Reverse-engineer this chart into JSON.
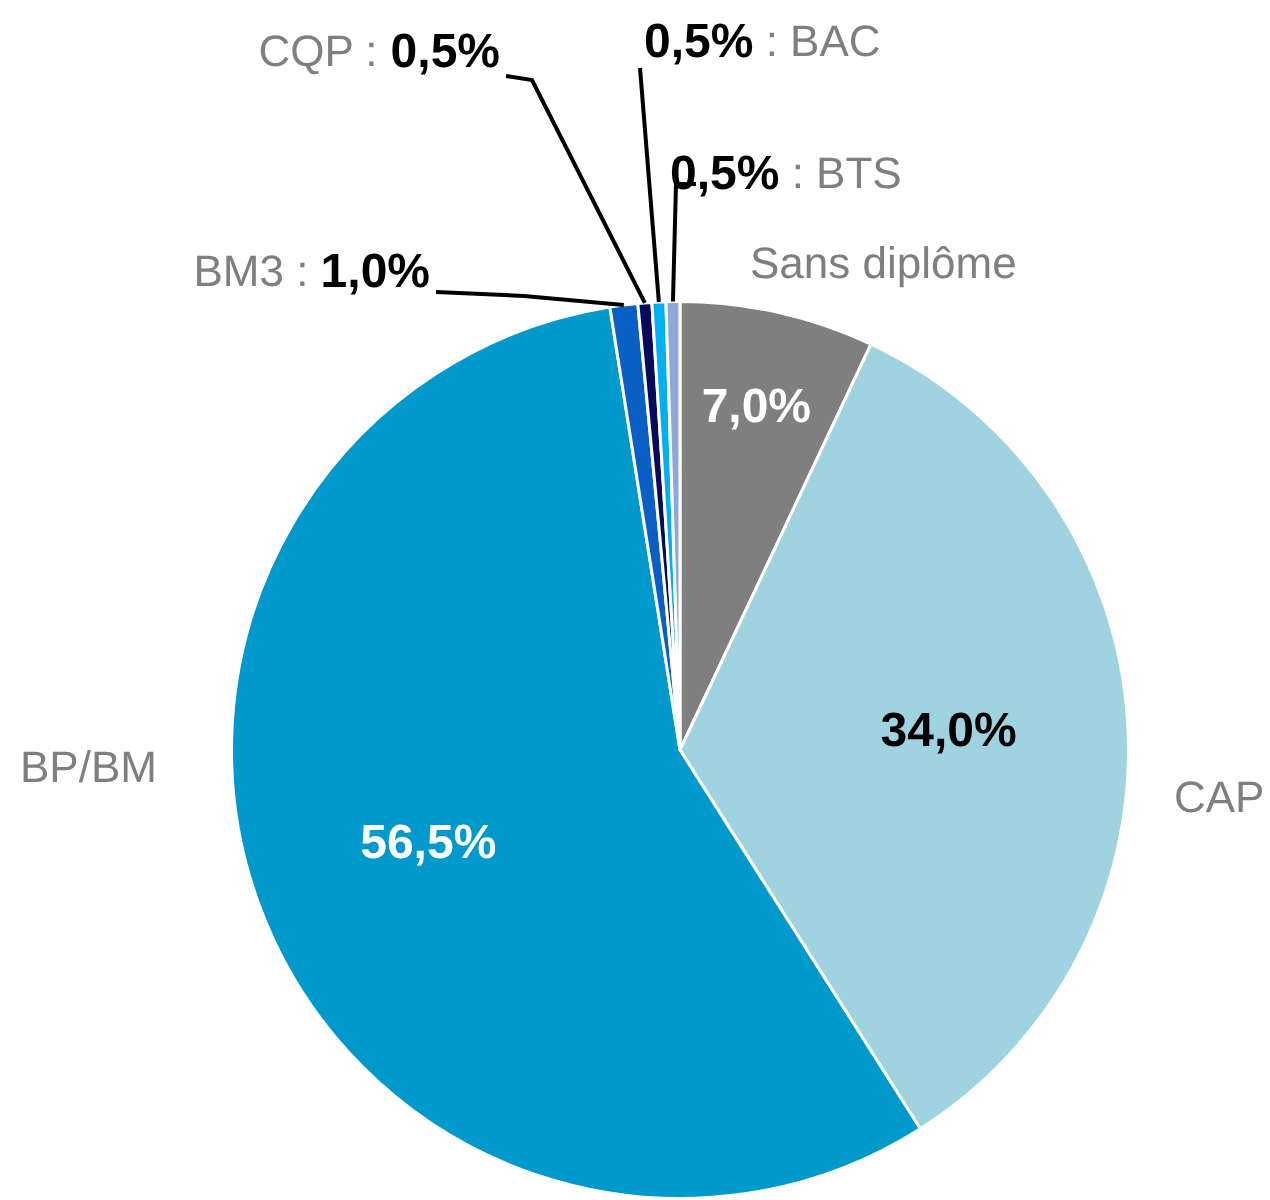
{
  "chart_data": {
    "type": "pie",
    "categories": [
      "Sans diplôme",
      "CAP",
      "BP/BM",
      "BM3",
      "CQP",
      ": BAC",
      ": BTS"
    ],
    "values": [
      7.0,
      34.0,
      56.5,
      1.0,
      0.5,
      0.5,
      0.5
    ],
    "value_labels": [
      "7,0%",
      "34,0%",
      "56,5%",
      ": 1,0%",
      ": 0,5%",
      "0,5%",
      "0,5%"
    ],
    "colors": [
      "#7f7f7f",
      "#9fd3e0",
      "#0099cc",
      "#0a5fc4",
      "#0a0a5a",
      "#00b0f0",
      "#8fa8d8"
    ],
    "legend": false
  }
}
